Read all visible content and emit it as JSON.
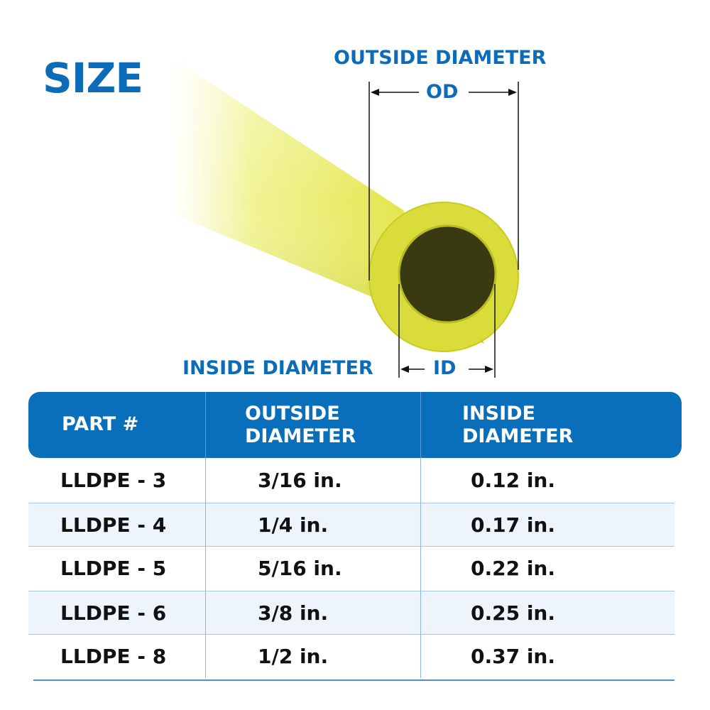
{
  "title": "SIZE",
  "diagram": {
    "outside_label": "OUTSIDE DIAMETER",
    "outside_abbr": "OD",
    "inside_label": "INSIDE DIAMETER",
    "inside_abbr": "ID",
    "tube_color": "#e6e84a",
    "accent_color": "#0c6cb9"
  },
  "table": {
    "headers": [
      "PART #",
      "OUTSIDE\nDIAMETER",
      "INSIDE\nDIAMETER"
    ],
    "header_lines": [
      [
        "PART #"
      ],
      [
        "OUTSIDE",
        "DIAMETER"
      ],
      [
        "INSIDE",
        "DIAMETER"
      ]
    ],
    "rows": [
      [
        "LLDPE - 3",
        "3/16 in.",
        "0.12 in."
      ],
      [
        "LLDPE - 4",
        "1/4 in.",
        "0.17 in."
      ],
      [
        "LLDPE - 5",
        "5/16 in.",
        "0.22 in."
      ],
      [
        "LLDPE - 6",
        "3/8 in.",
        "0.25 in."
      ],
      [
        "LLDPE - 8",
        "1/2 in.",
        "0.37 in."
      ]
    ]
  }
}
